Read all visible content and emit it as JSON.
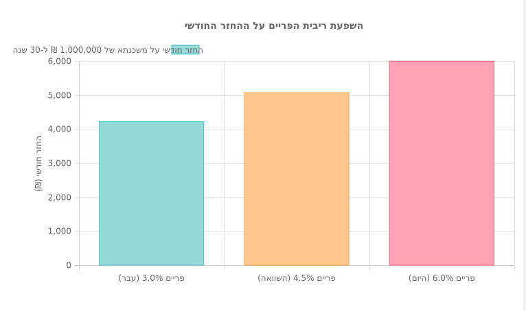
{
  "chart_data": {
    "type": "bar",
    "title": "השפעת ריבית הפריים על ההחזר החודשי",
    "categories": [
      "פריים 3.0% (עבר)",
      "פריים 4.5% (השוואה)",
      "פריים 6.0% (היום)"
    ],
    "series": [
      {
        "name": "החזר חודשי על משכנתא של 1,000,000 ₪ ל-30 שנה",
        "values": [
          4216,
          5067,
          5996
        ],
        "colors": [
          "#96d9d9",
          "#ffc68e",
          "#ffa3b5"
        ],
        "border_colors": [
          "#4bc0c0",
          "#ff9f40",
          "#ff6384"
        ]
      }
    ],
    "ylabel": "החזר חודשי (₪)",
    "xlabel": "",
    "ylim": [
      0,
      6000
    ],
    "yticks": [
      "0",
      "1,000",
      "2,000",
      "3,000",
      "4,000",
      "5,000",
      "6,000"
    ],
    "grid": true,
    "legend_position": "top"
  }
}
